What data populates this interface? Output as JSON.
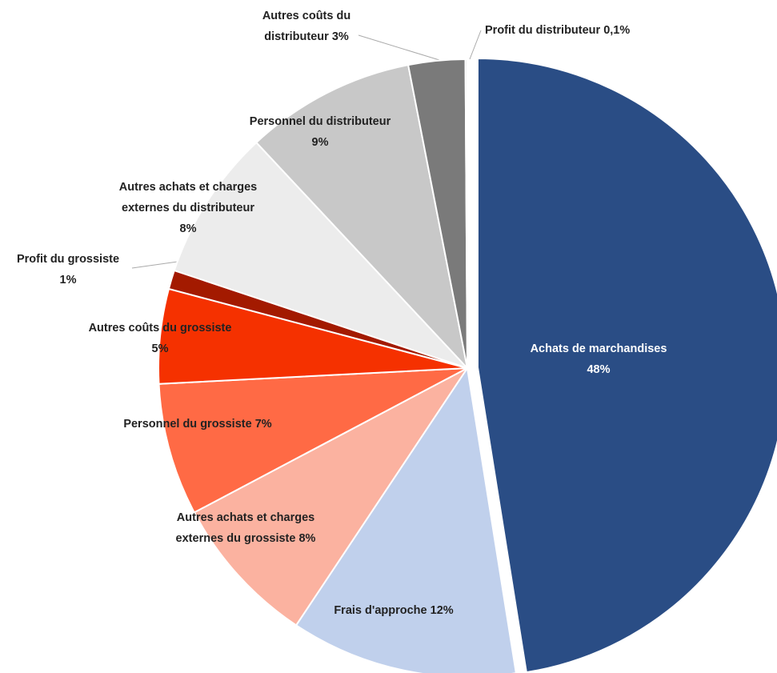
{
  "chart_data": {
    "type": "pie",
    "categories": [
      "Achats de marchandises",
      "Frais d'approche",
      "Autres achats et charges externes du grossiste",
      "Personnel du grossiste",
      "Autres coûts du grossiste",
      "Profit du grossiste",
      "Autres achats et charges externes du distributeur",
      "Personnel du distributeur",
      "Autres coûts du distributeur",
      "Profit du distributeur"
    ],
    "values": [
      48,
      12,
      8,
      7,
      5,
      1,
      8,
      9,
      3,
      0.1
    ],
    "value_labels": [
      "48%",
      "12%",
      "8%",
      "7%",
      "5%",
      "1%",
      "8%",
      "9%",
      "3%",
      "0,1%"
    ],
    "colors": [
      "#2a4d85",
      "#c0d0ec",
      "#fbb2a0",
      "#ff6a45",
      "#f53100",
      "#a31a00",
      "#ececec",
      "#c8c8c8",
      "#7a7a7a",
      "#d8d8d8"
    ]
  }
}
